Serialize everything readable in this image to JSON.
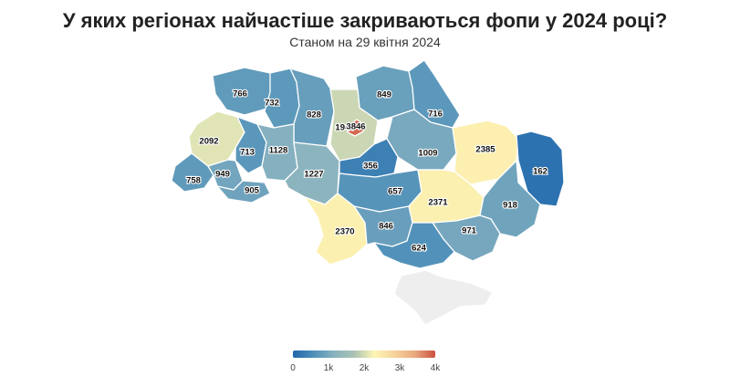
{
  "title": "У яких регіонах найчастіше закриваються фопи у 2024 році?",
  "subtitle": "Станом на 29 квітня 2024",
  "colors": {
    "scale": [
      "#2166ac",
      "#4d8fb9",
      "#87b1c0",
      "#a9c2b4",
      "#fdf5b5",
      "#f6d39a",
      "#e9a97f",
      "#c9503f"
    ],
    "no_data": "#eeeeee"
  },
  "legend": {
    "ticks": [
      "0",
      "1k",
      "2k",
      "3k",
      "4k"
    ],
    "min": 0,
    "max": 4000
  },
  "map_data": {
    "metric": "closures",
    "regions": [
      {
        "id": "volyn",
        "value": 766
      },
      {
        "id": "rivne",
        "value": 732
      },
      {
        "id": "zhytomyr",
        "value": 828
      },
      {
        "id": "chernihiv",
        "value": 849
      },
      {
        "id": "sumy",
        "value": 716
      },
      {
        "id": "lviv",
        "value": 2092
      },
      {
        "id": "ternopil",
        "value": 713
      },
      {
        "id": "khmelnytskyi",
        "value": 1128
      },
      {
        "id": "kyiv_oblast",
        "value": 1946
      },
      {
        "id": "kyiv_city",
        "value": 3846
      },
      {
        "id": "poltava",
        "value": 1009
      },
      {
        "id": "kharkiv",
        "value": 2385
      },
      {
        "id": "luhansk",
        "value": 162
      },
      {
        "id": "zakarpattia",
        "value": 758
      },
      {
        "id": "ivano_frankivsk",
        "value": 949
      },
      {
        "id": "chernivtsi",
        "value": 905
      },
      {
        "id": "vinnytsia",
        "value": 1227
      },
      {
        "id": "cherkasy",
        "value": 356
      },
      {
        "id": "kirovohrad",
        "value": 657
      },
      {
        "id": "dnipropetrovsk",
        "value": 2371
      },
      {
        "id": "donetsk",
        "value": 918
      },
      {
        "id": "odesa",
        "value": 2370
      },
      {
        "id": "mykolaiv",
        "value": 846
      },
      {
        "id": "zaporizhzhia",
        "value": 971
      },
      {
        "id": "kherson",
        "value": 624
      },
      {
        "id": "crimea",
        "value": null
      }
    ]
  }
}
